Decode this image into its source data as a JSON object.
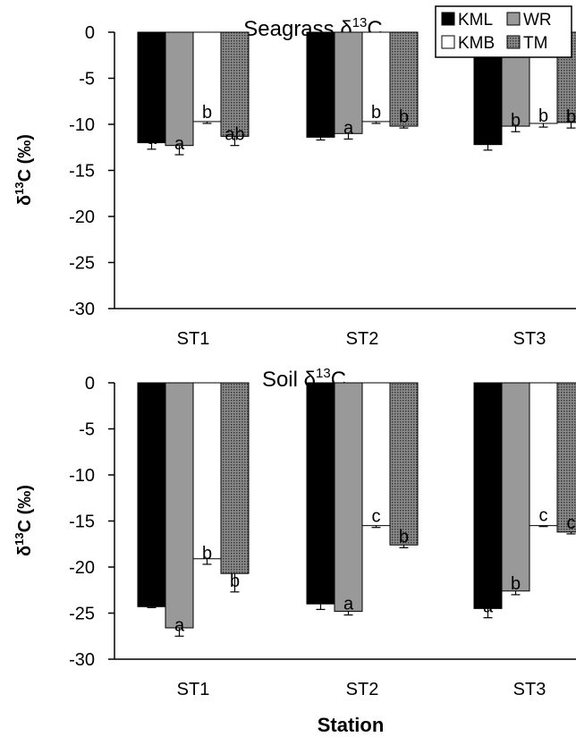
{
  "x_axis_label": "Station",
  "chart_data": [
    {
      "type": "bar",
      "title": "Seagrass δ13C",
      "title_main": "Seagrass δ",
      "title_sup": "13",
      "title_end": "C",
      "ylabel_pre": "δ",
      "ylabel_sup": "13",
      "ylabel_post": "C (‰)",
      "categories": [
        "ST1",
        "ST2",
        "ST3"
      ],
      "ylim": [
        -30,
        0
      ],
      "yticks": [
        0,
        -5,
        -10,
        -15,
        -20,
        -25,
        -30
      ],
      "series": [
        {
          "name": "KML",
          "values": [
            -12.0,
            -11.4,
            -12.2
          ],
          "errors": [
            0.7,
            0.3,
            0.6
          ],
          "labels": [
            "a",
            "a",
            "a"
          ],
          "fill": "#000000"
        },
        {
          "name": "WR",
          "values": [
            -12.3,
            -11.0,
            -10.2
          ],
          "errors": [
            1.0,
            0.6,
            0.6
          ],
          "labels": [
            "a",
            "a",
            "b"
          ],
          "fill": "#999999"
        },
        {
          "name": "KMB",
          "values": [
            -9.7,
            -9.7,
            -9.9
          ],
          "errors": [
            0.2,
            0.2,
            0.4
          ],
          "labels": [
            "b",
            "b",
            "b"
          ],
          "fill": "#ffffff"
        },
        {
          "name": "TM",
          "values": [
            -11.3,
            -10.2,
            -9.8
          ],
          "errors": [
            1.0,
            0.2,
            0.6
          ],
          "labels": [
            "ab",
            "b",
            "b"
          ],
          "fill": "#777777",
          "pattern": "dots"
        }
      ]
    },
    {
      "type": "bar",
      "title": "Soil δ13C",
      "title_main": "Soil δ",
      "title_sup": "13",
      "title_end": "C",
      "ylabel_pre": "δ",
      "ylabel_sup": "13",
      "ylabel_post": "C (‰)",
      "categories": [
        "ST1",
        "ST2",
        "ST3"
      ],
      "ylim": [
        -30,
        0
      ],
      "yticks": [
        0,
        -5,
        -10,
        -15,
        -20,
        -25,
        -30
      ],
      "series": [
        {
          "name": "KML",
          "values": [
            -24.3,
            -24.0,
            -24.5
          ],
          "errors": [
            0.1,
            0.6,
            1.0
          ],
          "labels": [
            "a",
            "a",
            "a"
          ],
          "fill": "#000000"
        },
        {
          "name": "WR",
          "values": [
            -26.6,
            -24.8,
            -22.6
          ],
          "errors": [
            0.9,
            0.4,
            0.4
          ],
          "labels": [
            "a",
            "a",
            "b"
          ],
          "fill": "#999999"
        },
        {
          "name": "KMB",
          "values": [
            -19.1,
            -15.5,
            -15.5
          ],
          "errors": [
            0.6,
            0.2,
            0.1
          ],
          "labels": [
            "b",
            "c",
            "c"
          ],
          "fill": "#ffffff"
        },
        {
          "name": "TM",
          "values": [
            -20.7,
            -17.6,
            -16.2
          ],
          "errors": [
            2.0,
            0.3,
            0.2
          ],
          "labels": [
            "b",
            "b",
            "c"
          ],
          "fill": "#777777",
          "pattern": "dots"
        }
      ]
    }
  ],
  "legend": {
    "placement": "top-right",
    "items": [
      {
        "name": "KML"
      },
      {
        "name": "WR"
      },
      {
        "name": "KMB"
      },
      {
        "name": "TM"
      }
    ]
  }
}
